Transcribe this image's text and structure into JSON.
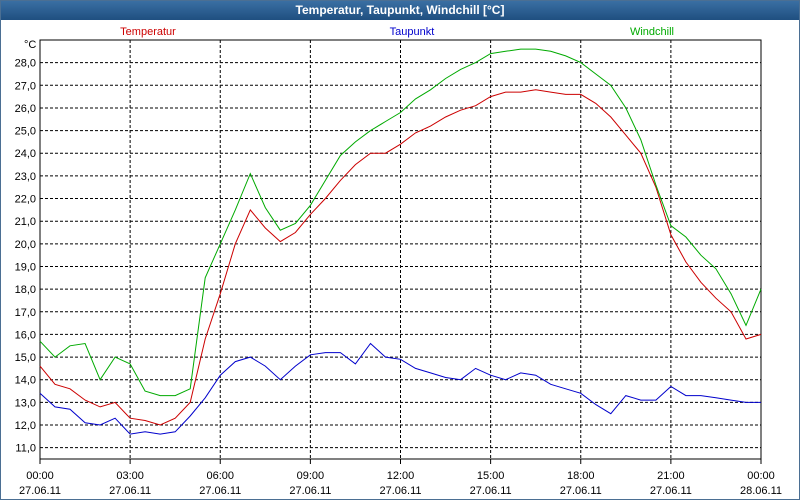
{
  "window": {
    "title": "Temperatur, Taupunkt, Windchill [°C]"
  },
  "chart_data": {
    "type": "line",
    "title": "Temperatur, Taupunkt, Windchill [°C]",
    "ylabel": "°C",
    "xlabel": "",
    "grid": true,
    "ylim": [
      10.5,
      29.0
    ],
    "yticks": [
      "11,0",
      "12,0",
      "13,0",
      "14,0",
      "15,0",
      "16,0",
      "17,0",
      "18,0",
      "19,0",
      "20,0",
      "21,0",
      "22,0",
      "23,0",
      "24,0",
      "25,0",
      "26,0",
      "27,0",
      "28,0"
    ],
    "xticks": [
      {
        "time": "00:00",
        "date": "27.06.11"
      },
      {
        "time": "03:00",
        "date": "27.06.11"
      },
      {
        "time": "06:00",
        "date": "27.06.11"
      },
      {
        "time": "09:00",
        "date": "27.06.11"
      },
      {
        "time": "12:00",
        "date": "27.06.11"
      },
      {
        "time": "15:00",
        "date": "27.06.11"
      },
      {
        "time": "18:00",
        "date": "27.06.11"
      },
      {
        "time": "21:00",
        "date": "27.06.11"
      },
      {
        "time": "00:00",
        "date": "28.06.11"
      }
    ],
    "x_hours": [
      0,
      0.5,
      1,
      1.5,
      2,
      2.5,
      3,
      3.5,
      4,
      4.5,
      5,
      5.5,
      6,
      6.5,
      7,
      7.5,
      8,
      8.5,
      9,
      9.5,
      10,
      10.5,
      11,
      11.5,
      12,
      12.5,
      13,
      13.5,
      14,
      14.5,
      15,
      15.5,
      16,
      16.5,
      17,
      17.5,
      18,
      18.5,
      19,
      19.5,
      20,
      20.5,
      21,
      21.5,
      22,
      22.5,
      23,
      23.5,
      24
    ],
    "series": [
      {
        "name": "Temperatur",
        "color": "#cc0000",
        "values": [
          14.6,
          13.8,
          13.6,
          13.1,
          12.8,
          13.0,
          12.3,
          12.2,
          12.0,
          12.3,
          13.0,
          15.8,
          17.8,
          20.0,
          21.5,
          20.7,
          20.1,
          20.5,
          21.3,
          22.0,
          22.8,
          23.5,
          24.0,
          24.0,
          24.4,
          24.9,
          25.2,
          25.6,
          25.9,
          26.1,
          26.5,
          26.7,
          26.7,
          26.8,
          26.7,
          26.6,
          26.6,
          26.2,
          25.6,
          24.8,
          24.0,
          22.5,
          20.4,
          19.2,
          18.3,
          17.6,
          17.0,
          15.8,
          16.0
        ]
      },
      {
        "name": "Taupunkt",
        "color": "#0000cc",
        "values": [
          13.4,
          12.8,
          12.7,
          12.1,
          12.0,
          12.3,
          11.6,
          11.7,
          11.6,
          11.7,
          12.4,
          13.2,
          14.2,
          14.8,
          15.0,
          14.6,
          14.0,
          14.6,
          15.1,
          15.2,
          15.2,
          14.7,
          15.6,
          15.0,
          14.9,
          14.5,
          14.3,
          14.1,
          14.0,
          14.5,
          14.2,
          14.0,
          14.3,
          14.2,
          13.8,
          13.6,
          13.4,
          12.9,
          12.5,
          13.3,
          13.1,
          13.1,
          13.7,
          13.3,
          13.3,
          13.2,
          13.1,
          13.0,
          13.0
        ]
      },
      {
        "name": "Windchill",
        "color": "#00aa00",
        "values": [
          15.7,
          15.0,
          15.5,
          15.6,
          14.0,
          15.0,
          14.7,
          13.5,
          13.3,
          13.3,
          13.6,
          18.5,
          20.0,
          21.5,
          23.1,
          21.6,
          20.6,
          20.9,
          21.7,
          22.8,
          23.9,
          24.5,
          25.0,
          25.4,
          25.8,
          26.4,
          26.8,
          27.3,
          27.7,
          28.0,
          28.4,
          28.5,
          28.6,
          28.6,
          28.5,
          28.3,
          28.0,
          27.5,
          27.0,
          26.0,
          24.6,
          22.6,
          20.8,
          20.3,
          19.5,
          18.9,
          17.8,
          16.4,
          18.0
        ]
      }
    ]
  }
}
